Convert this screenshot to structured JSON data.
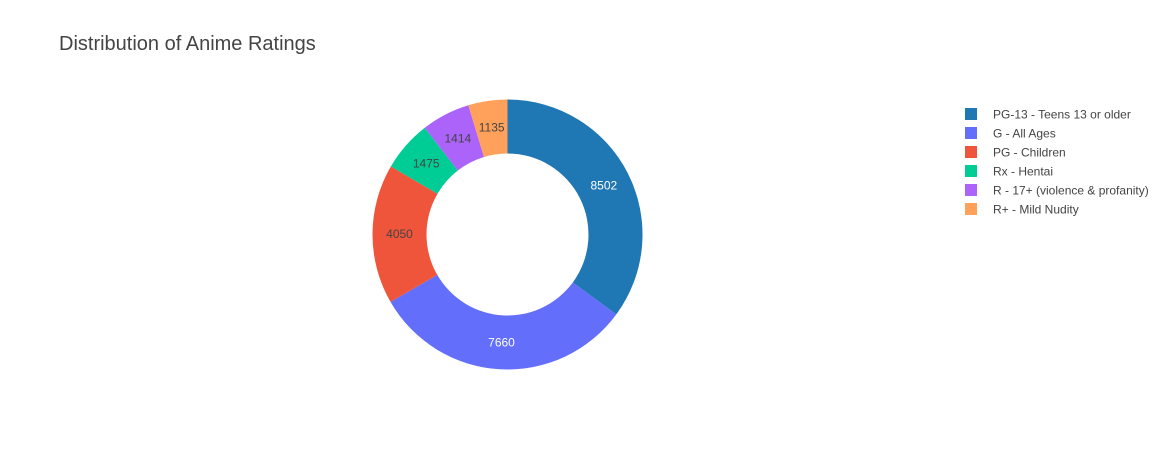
{
  "chart_data": {
    "type": "pie",
    "title": "Distribution of Anime Ratings",
    "hole": 0.4,
    "direction": "clockwise",
    "sort": "descending",
    "slices": [
      {
        "label": "PG-13 - Teens 13 or older",
        "value": 8502,
        "color": "#1f77b4",
        "text_color": "#ffffff"
      },
      {
        "label": "G - All Ages",
        "value": 7660,
        "color": "#636efa",
        "text_color": "#ffffff"
      },
      {
        "label": "PG - Children",
        "value": 4050,
        "color": "#ef553b",
        "text_color": "#444444"
      },
      {
        "label": "Rx - Hentai",
        "value": 1475,
        "color": "#00cc96",
        "text_color": "#444444"
      },
      {
        "label": "R - 17+ (violence & profanity)",
        "value": 1414,
        "color": "#ab63fa",
        "text_color": "#444444"
      },
      {
        "label": "R+ - Mild Nudity",
        "value": 1135,
        "color": "#ffa15a",
        "text_color": "#444444"
      }
    ],
    "legend": {
      "position": "right",
      "items": [
        "PG-13 - Teens 13 or older",
        "G - All Ages",
        "PG - Children",
        "Rx - Hentai",
        "R - 17+ (violence & profanity)",
        "R+ - Mild Nudity"
      ]
    }
  }
}
